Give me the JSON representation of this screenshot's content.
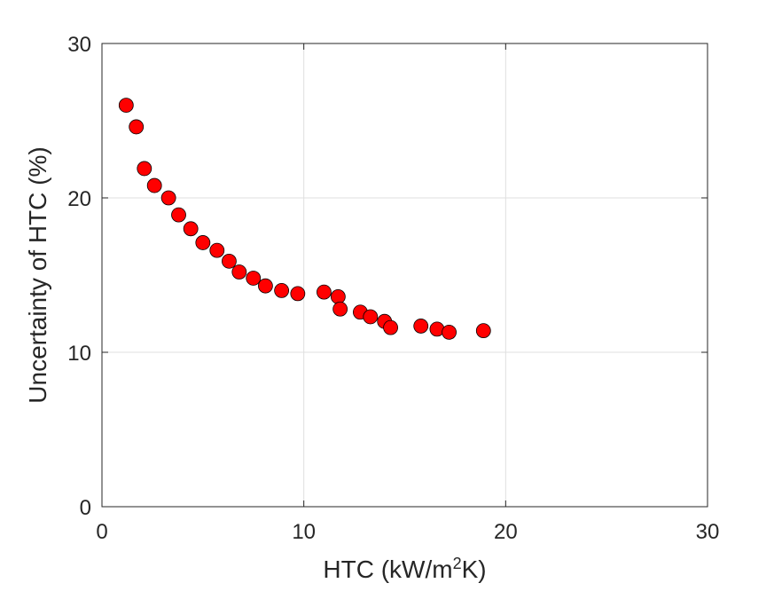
{
  "chart_data": {
    "type": "scatter",
    "title": "",
    "xlabel": {
      "prefix": "HTC  (kW/m",
      "superscript": "2",
      "suffix": "K)"
    },
    "ylabel": "Uncertainty of HTC (%)",
    "xlim": [
      0,
      30
    ],
    "ylim": [
      0,
      30
    ],
    "xticks": [
      0,
      10,
      20,
      30
    ],
    "yticks": [
      0,
      10,
      20,
      30
    ],
    "x_tick_labels": [
      "0",
      "10",
      "20",
      "30"
    ],
    "y_tick_labels": [
      "0",
      "10",
      "20",
      "30"
    ],
    "grid": true,
    "marker": {
      "shape": "circle",
      "fill": "#ff0000",
      "edge": "#000000"
    },
    "colors": {
      "axis": "#262626",
      "grid": "#dfdfdf"
    },
    "series": [
      {
        "x": [
          1.2,
          1.7,
          2.1,
          2.6,
          3.3,
          3.8,
          4.4,
          5.0,
          5.7,
          6.3,
          6.8,
          7.5,
          8.1,
          8.9,
          9.7,
          11.0,
          11.7,
          11.8,
          12.8,
          13.3,
          14.0,
          14.3,
          15.8,
          16.6,
          17.2,
          18.9
        ],
        "y": [
          26.0,
          24.6,
          21.9,
          20.8,
          20.0,
          18.9,
          18.0,
          17.1,
          16.6,
          15.9,
          15.2,
          14.8,
          14.3,
          14.0,
          13.8,
          13.9,
          13.6,
          12.8,
          12.6,
          12.3,
          12.0,
          11.6,
          11.7,
          11.5,
          11.3,
          11.4
        ]
      }
    ]
  }
}
